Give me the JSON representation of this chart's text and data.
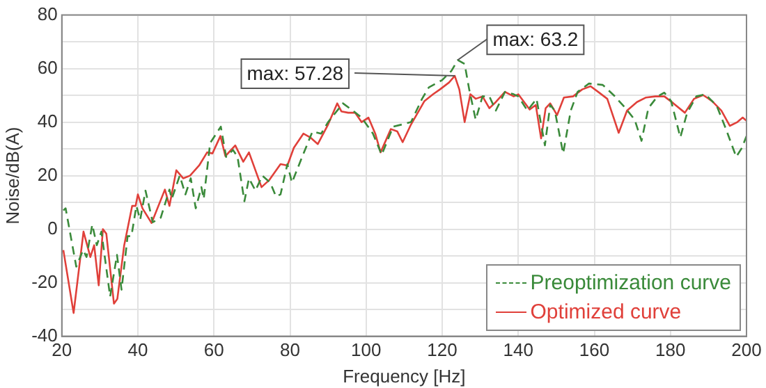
{
  "chart_data": {
    "type": "line",
    "xlabel": "Frequency [Hz]",
    "ylabel": "Noise/dB(A)",
    "xlim": [
      20,
      200
    ],
    "xticks": [
      20,
      40,
      60,
      80,
      100,
      120,
      140,
      160,
      180,
      200
    ],
    "ylim": [
      -40,
      80
    ],
    "yticks": [
      -40,
      {
        "value": -30,
        "label": null
      },
      -20,
      {
        "value": -10,
        "label": null
      },
      0,
      {
        "value": 10,
        "label": null
      },
      20,
      {
        "value": 30,
        "label": null
      },
      40,
      {
        "value": 50,
        "label": null
      },
      60,
      {
        "value": 70,
        "label": null
      },
      80
    ],
    "grid": true,
    "legend": "bottom right",
    "marker": "none",
    "annotations": [
      {
        "text": "max: 57.28",
        "x": 123.3,
        "y": 57.28
      },
      {
        "text": "max: 63.2",
        "x": 124.1,
        "y": 63.2
      }
    ],
    "series": [
      {
        "name": "Preoptimization curve",
        "color": "#3a8a3a",
        "line_style": "dashed",
        "x": [
          20.4,
          21,
          23.8,
          25.6,
          26.5,
          28,
          29.2,
          30.4,
          32.7,
          34.5,
          35.7,
          37.3,
          38.3,
          39.6,
          40.6,
          42,
          43.9,
          46,
          48.3,
          48.9,
          51,
          52.5,
          53.9,
          55.2,
          56.7,
          57.3,
          59,
          61.8,
          63.2,
          65,
          66.2,
          68,
          69.2,
          70.9,
          72.7,
          74.8,
          76.3,
          77.5,
          79.3,
          80.5,
          82.9,
          85.9,
          88.2,
          90,
          93.9,
          96.5,
          98.8,
          101.8,
          104.1,
          107.1,
          109.4,
          111.8,
          114.7,
          116.5,
          120,
          122.4,
          124.1,
          125.9,
          127.1,
          128.8,
          130.6,
          132.4,
          134.1,
          136.5,
          138.8,
          140,
          142.4,
          144.8,
          147,
          148.4,
          149.6,
          151.8,
          153.8,
          155.6,
          158.6,
          162.2,
          165.2,
          168.2,
          170.6,
          172.4,
          174.2,
          176.6,
          178.4,
          180.2,
          182.6,
          184.4,
          186.8,
          189.2,
          192.2,
          194.6,
          197.3,
          198.8,
          200
        ],
        "values": [
          7,
          7.8,
          -14,
          -7.8,
          -10.4,
          1.7,
          -6,
          -0.9,
          -25.2,
          -9.6,
          -22.6,
          -2.6,
          -2.6,
          8.7,
          3.5,
          14.4,
          2.6,
          4.3,
          14.8,
          11.3,
          20,
          13,
          19,
          7.8,
          15.7,
          11.3,
          32.2,
          38.3,
          27,
          29.6,
          27,
          10.4,
          19,
          14.4,
          20,
          17.4,
          12.2,
          13,
          24.3,
          17.4,
          26,
          36.5,
          35.7,
          40,
          47,
          44.3,
          41.7,
          35.7,
          27.8,
          38.3,
          39.1,
          40,
          48.7,
          53,
          55.7,
          59.1,
          63.2,
          61.7,
          52.2,
          40.9,
          49.6,
          49.6,
          44.3,
          51.3,
          50.4,
          49.6,
          44.3,
          48.7,
          31.3,
          46.4,
          44.3,
          28.3,
          44.3,
          51.3,
          54.4,
          53.9,
          49.9,
          45.2,
          40.9,
          33,
          45.2,
          49.6,
          51,
          47.8,
          34.3,
          43.5,
          49.6,
          50.4,
          46,
          37.4,
          27,
          30.4,
          34.8
        ]
      },
      {
        "name": "Optimized curve",
        "color": "#e0403a",
        "line_style": "solid",
        "x": [
          20.4,
          23.1,
          25.7,
          27.5,
          28.5,
          29.7,
          30.8,
          31.7,
          33.7,
          34.6,
          36.4,
          38.5,
          39.4,
          40,
          41.2,
          43.6,
          47.1,
          48.3,
          50.1,
          51.9,
          53.7,
          56.1,
          58.2,
          59.6,
          61.7,
          63,
          65.6,
          67.7,
          69.2,
          72.5,
          74.5,
          77.5,
          79.3,
          81,
          83.5,
          85.3,
          87.3,
          90,
          92.4,
          93.5,
          95.3,
          97.1,
          98.8,
          100.6,
          102.4,
          103.8,
          106.5,
          108.2,
          109.6,
          111.8,
          115.3,
          117.6,
          119.4,
          121.8,
          123.3,
          124.5,
          125.9,
          127.4,
          128.8,
          130.6,
          132.4,
          134.1,
          136.5,
          138.8,
          140,
          143,
          144.6,
          146,
          147.2,
          148.4,
          150.2,
          152,
          154.4,
          156.8,
          159,
          161,
          163.4,
          166.4,
          168.6,
          171.2,
          173.6,
          176,
          178.4,
          180.8,
          183.8,
          186.2,
          188.6,
          191,
          193.4,
          195.6,
          197.6,
          199,
          200
        ],
        "values": [
          -7.8,
          -31.3,
          -0.9,
          -10.4,
          -6,
          -21,
          0,
          -1.7,
          -27.8,
          -26,
          -6,
          8.7,
          8.7,
          13,
          7.8,
          2.3,
          14.8,
          8.7,
          22,
          19,
          20,
          23.8,
          28.7,
          28.3,
          34.8,
          27.3,
          31.3,
          25.2,
          28.7,
          15.7,
          18.3,
          24.3,
          23.8,
          30.4,
          35.7,
          34.3,
          31.8,
          39.1,
          47,
          44,
          43.5,
          43.5,
          40,
          41.7,
          35.7,
          28.7,
          37.4,
          36.5,
          32.5,
          39.1,
          47.8,
          50.4,
          52.2,
          54.8,
          57.28,
          52.2,
          40,
          50.4,
          48.7,
          49.6,
          45.2,
          47.5,
          51.3,
          49.6,
          50.4,
          44.7,
          46.4,
          33.9,
          45.2,
          47,
          42.6,
          49.2,
          49.6,
          52.2,
          53.4,
          51.3,
          48.7,
          36,
          44.3,
          47.5,
          49.2,
          49.6,
          49.6,
          47,
          43.5,
          48.7,
          50.1,
          47.8,
          44.3,
          38.6,
          40,
          41.7,
          40.5
        ]
      }
    ]
  }
}
